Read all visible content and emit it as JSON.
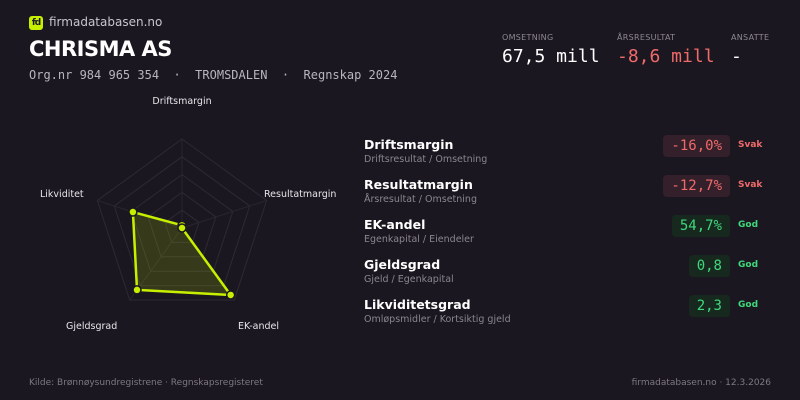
{
  "brand": {
    "logo_text": "fd",
    "site": "firmadatabasen.no"
  },
  "company": {
    "name": "CHRISMA AS",
    "meta": "Org.nr 984 965 354  ·  TROMSDALEN  ·  Regnskap 2024"
  },
  "stats": [
    {
      "label": "OMSETNING",
      "value": "67,5 mill",
      "color": "#ffffff"
    },
    {
      "label": "ÅRSRESULTAT",
      "value": "-8,6 mill",
      "color": "#f06a6a"
    },
    {
      "label": "ANSATTE",
      "value": "-",
      "color": "#ffffff"
    }
  ],
  "chart_data": {
    "type": "radar",
    "axes": [
      "Driftsmargin",
      "Resultatmargin",
      "EK-andel",
      "Gjeldsgrad",
      "Likviditet"
    ],
    "scores": [
      0.03,
      0.0,
      0.93,
      0.86,
      0.58
    ],
    "range": [
      0,
      1
    ],
    "grid_levels": 5,
    "color": "#c6f000"
  },
  "metrics": [
    {
      "name": "Driftsmargin",
      "formula": "Driftsresultat / Omsetning",
      "value": "-16,0%",
      "status": "Svak",
      "tone": "bad"
    },
    {
      "name": "Resultatmargin",
      "formula": "Årsresultat / Omsetning",
      "value": "-12,7%",
      "status": "Svak",
      "tone": "bad"
    },
    {
      "name": "EK-andel",
      "formula": "Egenkapital / Eiendeler",
      "value": "54,7%",
      "status": "God",
      "tone": "good"
    },
    {
      "name": "Gjeldsgrad",
      "formula": "Gjeld / Egenkapital",
      "value": "0,8",
      "status": "God",
      "tone": "good"
    },
    {
      "name": "Likviditetsgrad",
      "formula": "Omløpsmidler / Kortsiktig gjeld",
      "value": "2,3",
      "status": "God",
      "tone": "good"
    }
  ],
  "footer": {
    "source": "Kilde: Brønnøysundregistrene · Regnskapsregisteret",
    "right": "firmadatabasen.no · 12.3.2026"
  }
}
